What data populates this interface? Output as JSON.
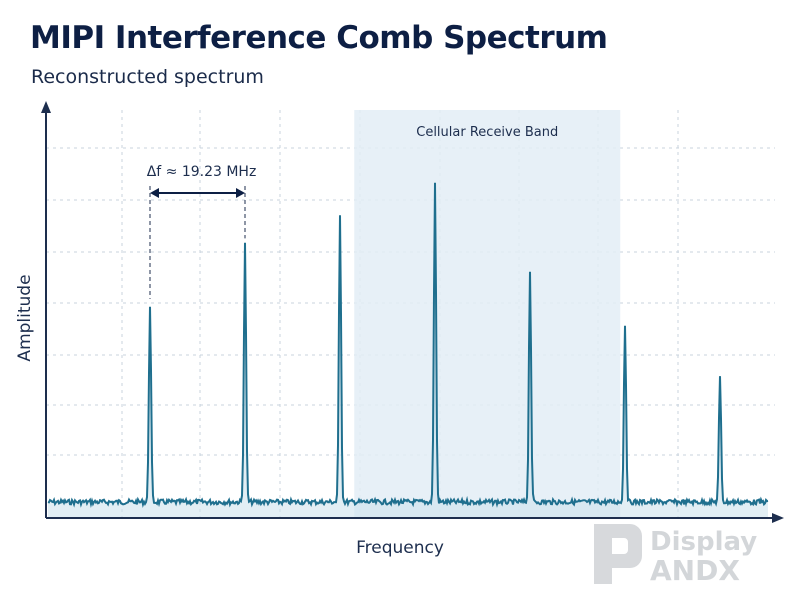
{
  "title": "MIPI Interference Comb Spectrum",
  "subtitle": "Reconstructed spectrum",
  "chart_data": {
    "type": "line",
    "xlabel": "Frequency",
    "ylabel": "Amplitude",
    "grid": true,
    "tick_labels_shown": false,
    "peaks": [
      {
        "index": 1,
        "amplitude": 0.62
      },
      {
        "index": 2,
        "amplitude": 0.81
      },
      {
        "index": 3,
        "amplitude": 0.9
      },
      {
        "index": 4,
        "amplitude": 1.0
      },
      {
        "index": 5,
        "amplitude": 0.73
      },
      {
        "index": 6,
        "amplitude": 0.56
      },
      {
        "index": 7,
        "amplitude": 0.39
      }
    ],
    "spacing_label": "Δf ≈ 19.23 MHz",
    "band": {
      "label": "Cellular Receive Band",
      "from_peak": 3.15,
      "to_peak": 5.95
    }
  },
  "watermark": {
    "text_top": "Display",
    "text_bottom": "ANDX"
  },
  "colors": {
    "title": "#0d1f44",
    "trace": "#1f6f8e",
    "band": "#e3edf6",
    "axis": "#1d2e4e",
    "grid": "#c9d3dd"
  }
}
